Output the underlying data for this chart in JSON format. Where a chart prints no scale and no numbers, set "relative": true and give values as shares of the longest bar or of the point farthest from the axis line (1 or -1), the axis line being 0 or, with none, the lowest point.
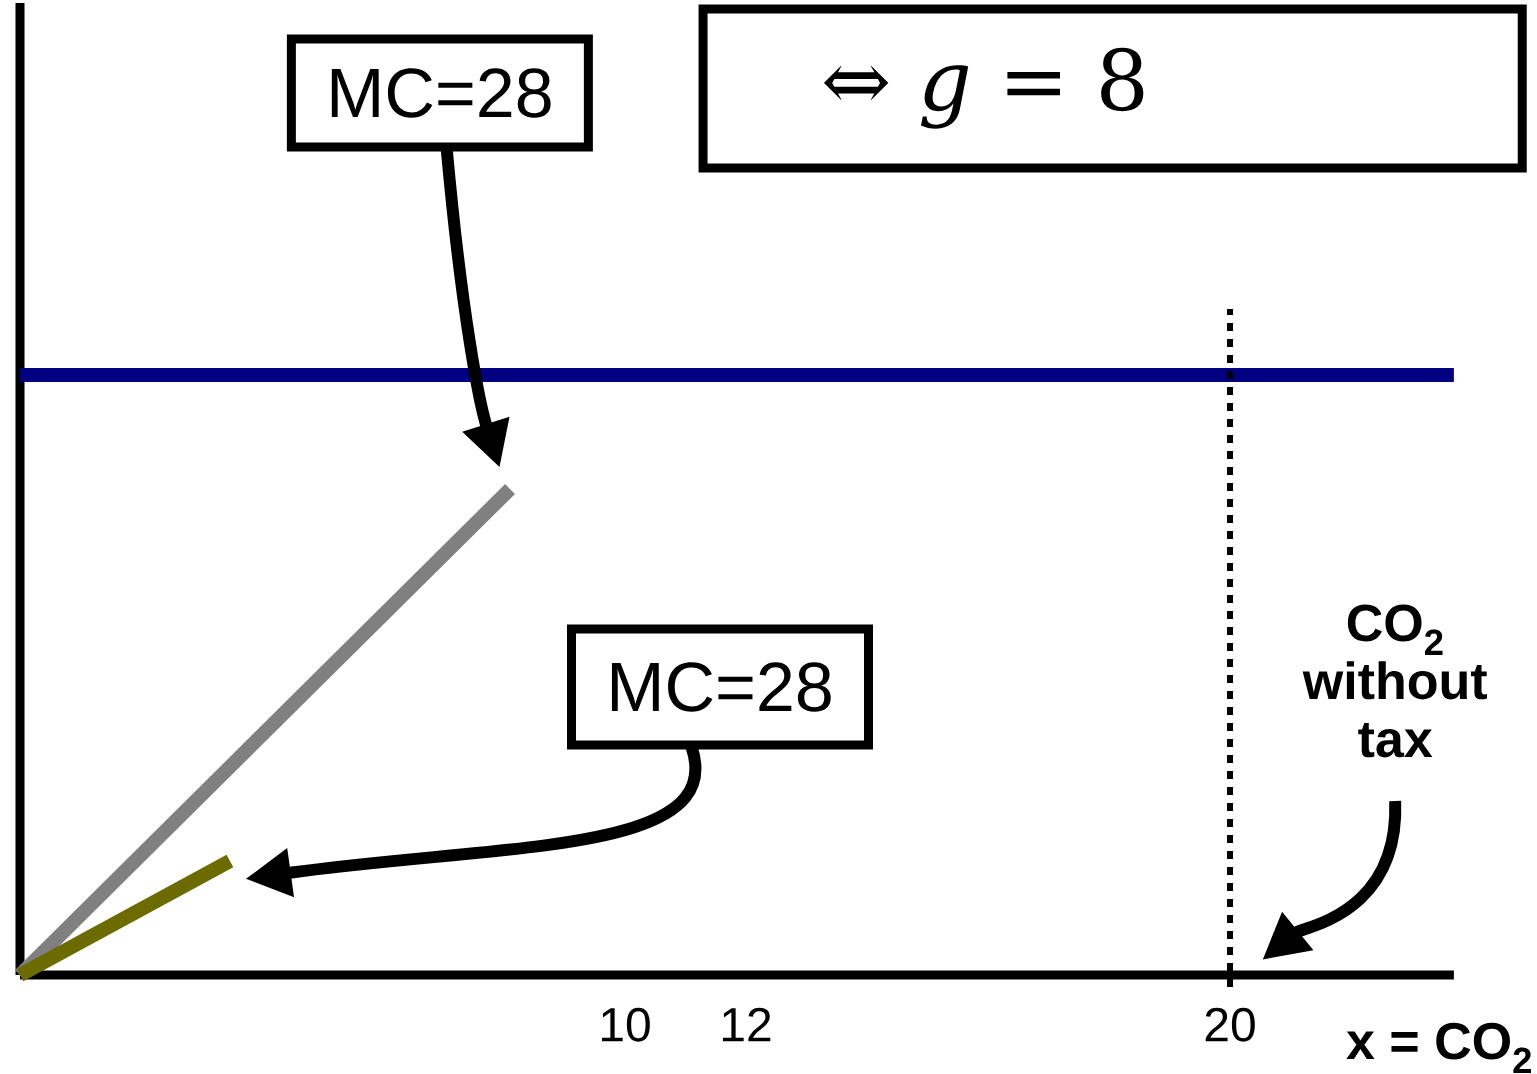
{
  "chart_data": {
    "type": "line",
    "relative": true,
    "xlabel": "x = CO$_{2}$",
    "xlim": [
      0,
      23.7
    ],
    "xticks": [
      10,
      12,
      20
    ],
    "line_style": "solid",
    "series": [
      {
        "color": "#808080",
        "x": [
          0,
          8.1
        ],
        "values": [
          0,
          0.81
        ]
      },
      {
        "color": "#6b6b00",
        "x": [
          0,
          3.47
        ],
        "values": [
          0,
          0.19
        ]
      },
      {
        "color": "#000080",
        "x": [
          0,
          23.7
        ],
        "values": [
          1,
          1
        ]
      }
    ],
    "ref_lines": [
      {
        "axis": "x",
        "value": 20,
        "color": "#000000",
        "line_style": "dotted"
      }
    ],
    "annotations": [
      "MC=28",
      "MC=28",
      "CO$_{2}$ without tax",
      "⇔ *g* = 8"
    ]
  }
}
